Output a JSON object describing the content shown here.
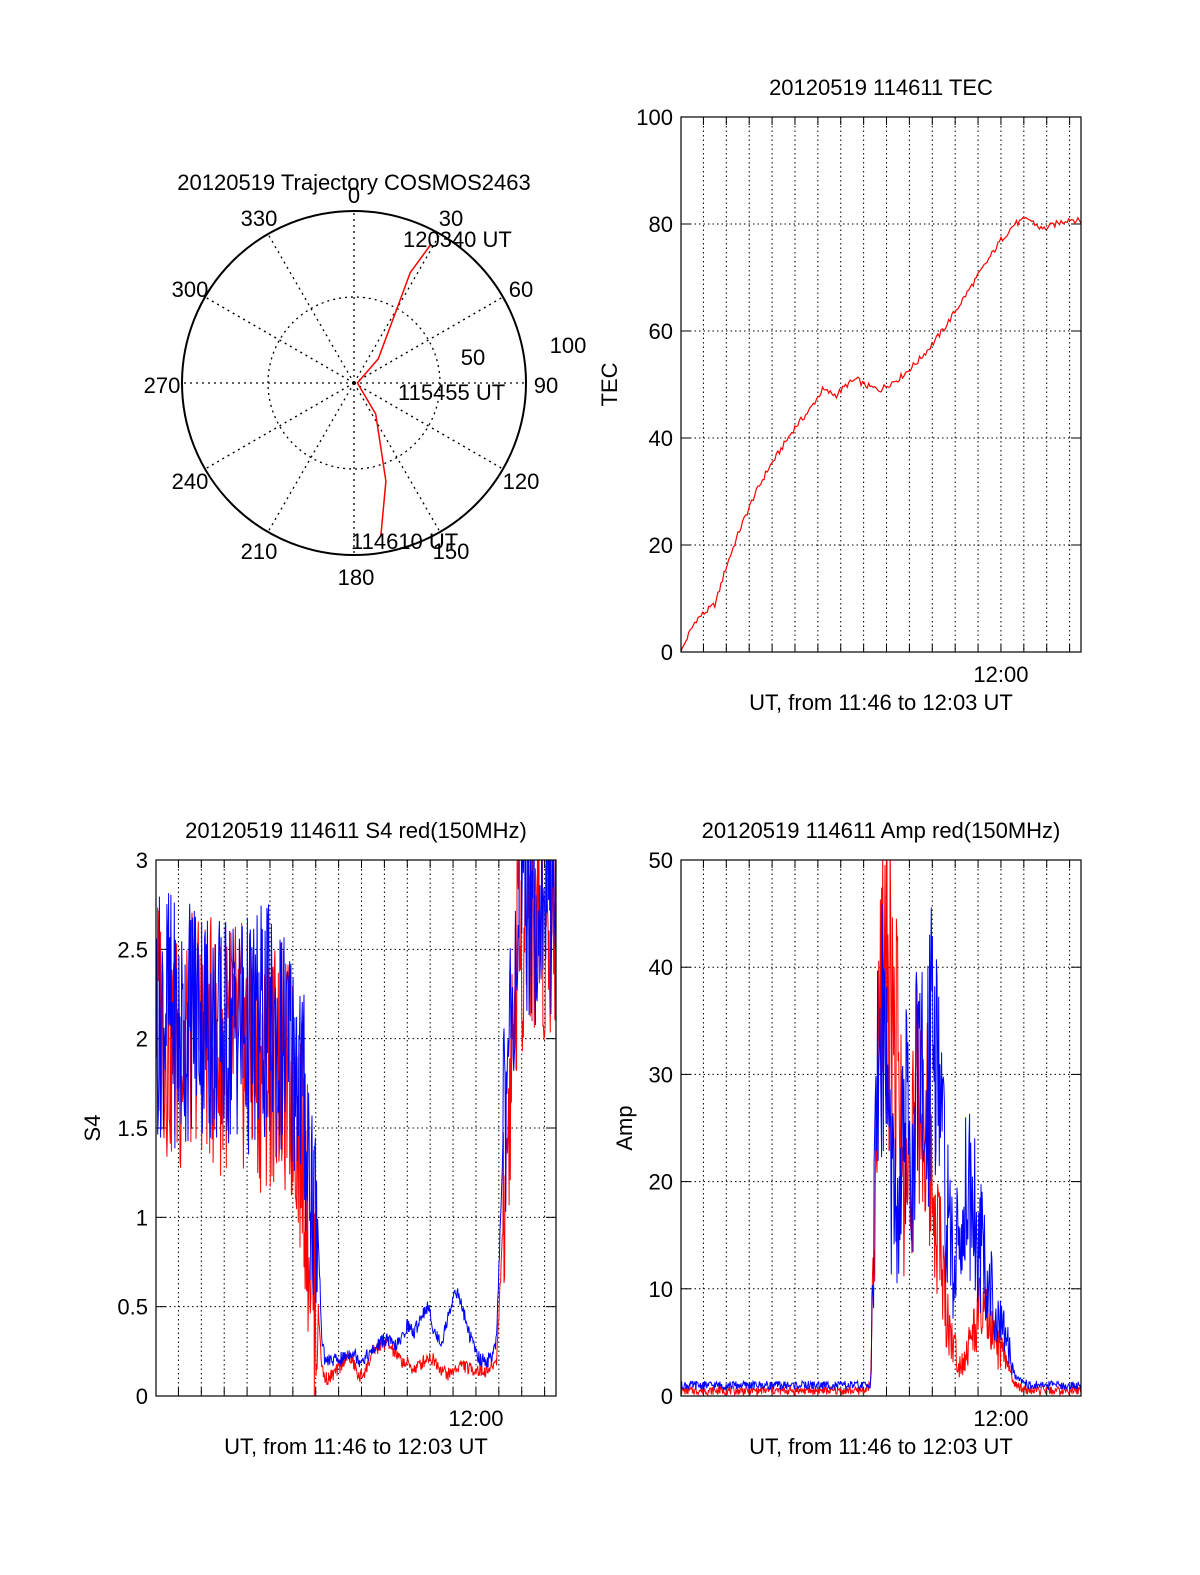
{
  "chart_data": [
    {
      "type": "polar",
      "title": "20120519 Trajectory COSMOS2463",
      "angle_labels": [
        "0",
        "30",
        "60",
        "90",
        "120",
        "150",
        "180",
        "210",
        "240",
        "270",
        "300",
        "330"
      ],
      "radius_labels": [
        "50",
        "100"
      ],
      "series": [
        {
          "color": "#ff0000",
          "points": [
            {
              "azimuth": 170,
              "zenith": 90
            },
            {
              "azimuth": 162,
              "zenith": 60
            },
            {
              "azimuth": 145,
              "zenith": 22
            },
            {
              "azimuth": 90,
              "zenith": 2
            },
            {
              "azimuth": 45,
              "zenith": 20
            },
            {
              "azimuth": 30,
              "zenith": 50
            },
            {
              "azimuth": 27,
              "zenith": 72
            },
            {
              "azimuth": 29,
              "zenith": 92
            }
          ]
        }
      ],
      "annotations": [
        "120340 UT",
        "115455 UT",
        "114610 UT"
      ]
    },
    {
      "type": "line",
      "title": "20120519 114611 TEC",
      "xlabel": "UT, from 11:46 to 12:03 UT",
      "ylabel": "TEC",
      "xlim": [
        11.767,
        12.0583
      ],
      "ylim": [
        0,
        100
      ],
      "yticks": [
        "0",
        "20",
        "40",
        "60",
        "80",
        "100"
      ],
      "xticks": [
        {
          "x": 12.0,
          "label": "12:00"
        }
      ],
      "grid": true,
      "series": [
        {
          "color": "#ff0000",
          "x": [
            11.768,
            11.772,
            11.778,
            11.785,
            11.792,
            11.8,
            11.81,
            11.82,
            11.83,
            11.84,
            11.85,
            11.86,
            11.87,
            11.88,
            11.888,
            11.895,
            11.9,
            11.905,
            11.912,
            11.918,
            11.925,
            11.932,
            11.94,
            11.95,
            11.96,
            11.97,
            11.98,
            11.99,
            12.0,
            12.01,
            12.02,
            12.03,
            12.04,
            12.05,
            12.058
          ],
          "y": [
            0.5,
            3,
            6,
            7.5,
            9,
            16,
            23,
            29,
            34,
            38,
            42,
            45,
            49,
            48,
            50,
            51,
            50,
            49.5,
            49,
            50,
            51,
            52.5,
            54.5,
            57.5,
            61,
            65,
            69,
            73,
            77,
            80,
            81,
            79,
            80,
            81,
            80.5
          ]
        }
      ]
    },
    {
      "type": "line",
      "title": "20120519 114611 S4 red(150MHz)",
      "xlabel": "UT, from 11:46 to 12:03 UT",
      "ylabel": "S4",
      "xlim": [
        11.767,
        12.0583
      ],
      "ylim": [
        0,
        3
      ],
      "yticks": [
        "0",
        "0.5",
        "1",
        "1.5",
        "2",
        "2.5",
        "3"
      ],
      "xticks": [
        {
          "x": 12.0,
          "label": "12:00"
        }
      ],
      "grid": true,
      "series": [
        {
          "color": "#ff0000",
          "x": [
            11.767,
            11.775,
            11.785,
            11.795,
            11.805,
            11.815,
            11.825,
            11.835,
            11.845,
            11.855,
            11.865,
            11.87,
            11.875,
            11.88,
            11.885,
            11.888,
            11.89,
            11.893,
            11.896,
            11.9,
            11.905,
            11.91,
            11.915,
            11.92,
            11.925,
            11.93,
            11.935,
            11.94,
            11.945,
            11.95,
            11.955,
            11.96,
            11.965,
            11.97,
            11.975,
            11.98,
            11.985,
            11.99,
            11.995,
            12.0,
            12.003,
            12.006,
            12.01,
            12.015,
            12.02,
            12.03,
            12.04,
            12.05,
            12.058
          ],
          "y": [
            2.2,
            2.0,
            1.9,
            2.1,
            2.0,
            1.9,
            2.0,
            1.9,
            1.8,
            1.9,
            1.7,
            1.6,
            1.3,
            0.8,
            0.5,
            0.15,
            0.1,
            0.1,
            0.12,
            0.15,
            0.22,
            0.2,
            0.1,
            0.15,
            0.25,
            0.28,
            0.3,
            0.25,
            0.2,
            0.18,
            0.15,
            0.18,
            0.22,
            0.2,
            0.15,
            0.12,
            0.15,
            0.18,
            0.15,
            0.15,
            0.14,
            0.14,
            0.15,
            0.2,
            1.0,
            2.5,
            2.8,
            2.6,
            2.8
          ]
        },
        {
          "color": "#0000ff",
          "x": [
            11.767,
            11.775,
            11.785,
            11.795,
            11.805,
            11.815,
            11.825,
            11.835,
            11.845,
            11.855,
            11.865,
            11.87,
            11.875,
            11.88,
            11.885,
            11.888,
            11.89,
            11.893,
            11.896,
            11.9,
            11.905,
            11.91,
            11.915,
            11.92,
            11.925,
            11.93,
            11.935,
            11.94,
            11.945,
            11.95,
            11.955,
            11.96,
            11.965,
            11.97,
            11.975,
            11.98,
            11.985,
            11.99,
            11.995,
            12.0,
            12.003,
            12.006,
            12.01,
            12.015,
            12.02,
            12.03,
            12.04,
            12.05,
            12.058
          ],
          "y": [
            2.1,
            2.2,
            2.0,
            2.2,
            2.1,
            2.0,
            2.1,
            2.0,
            2.1,
            2.0,
            1.9,
            1.9,
            1.6,
            1.2,
            0.9,
            0.3,
            0.2,
            0.2,
            0.2,
            0.2,
            0.22,
            0.25,
            0.2,
            0.22,
            0.25,
            0.3,
            0.32,
            0.28,
            0.3,
            0.4,
            0.35,
            0.45,
            0.5,
            0.35,
            0.3,
            0.45,
            0.6,
            0.5,
            0.35,
            0.25,
            0.2,
            0.2,
            0.2,
            0.3,
            1.5,
            2.6,
            2.8,
            2.7,
            2.9
          ]
        }
      ]
    },
    {
      "type": "line",
      "title": "20120519 114611 Amp red(150MHz)",
      "xlabel": "UT, from 11:46 to 12:03 UT",
      "ylabel": "Amp",
      "xlim": [
        11.767,
        12.0583
      ],
      "ylim": [
        0,
        50
      ],
      "yticks": [
        "0",
        "10",
        "20",
        "30",
        "40",
        "50"
      ],
      "xticks": [
        {
          "x": 12.0,
          "label": "12:00"
        }
      ],
      "grid": true,
      "series": [
        {
          "color": "#ff0000",
          "x": [
            11.767,
            11.8,
            11.85,
            11.9,
            11.905,
            11.91,
            11.913,
            11.916,
            11.92,
            11.925,
            11.93,
            11.935,
            11.94,
            11.945,
            11.95,
            11.955,
            11.96,
            11.965,
            11.97,
            11.975,
            11.98,
            11.985,
            11.99,
            11.995,
            12.0,
            12.005,
            12.01,
            12.02,
            12.03,
            12.04,
            12.058
          ],
          "y": [
            0.5,
            0.5,
            0.5,
            0.5,
            1,
            25,
            40,
            45,
            38,
            30,
            18,
            24,
            28,
            26,
            20,
            15,
            8,
            5,
            3,
            4,
            6,
            8,
            7,
            5,
            4,
            3,
            1,
            0.5,
            0.5,
            0.5,
            0.5
          ]
        },
        {
          "color": "#0000ff",
          "x": [
            11.767,
            11.8,
            11.85,
            11.9,
            11.905,
            11.91,
            11.913,
            11.916,
            11.92,
            11.925,
            11.93,
            11.935,
            11.94,
            11.945,
            11.95,
            11.955,
            11.96,
            11.965,
            11.97,
            11.975,
            11.98,
            11.985,
            11.99,
            11.995,
            12.0,
            12.005,
            12.01,
            12.02,
            12.03,
            12.04,
            12.058
          ],
          "y": [
            1,
            1,
            1,
            1,
            1,
            30,
            35,
            32,
            20,
            15,
            26,
            22,
            30,
            25,
            40,
            30,
            18,
            12,
            15,
            20,
            18,
            14,
            12,
            8,
            6,
            5,
            2,
            1,
            1,
            1,
            1
          ]
        }
      ]
    }
  ]
}
